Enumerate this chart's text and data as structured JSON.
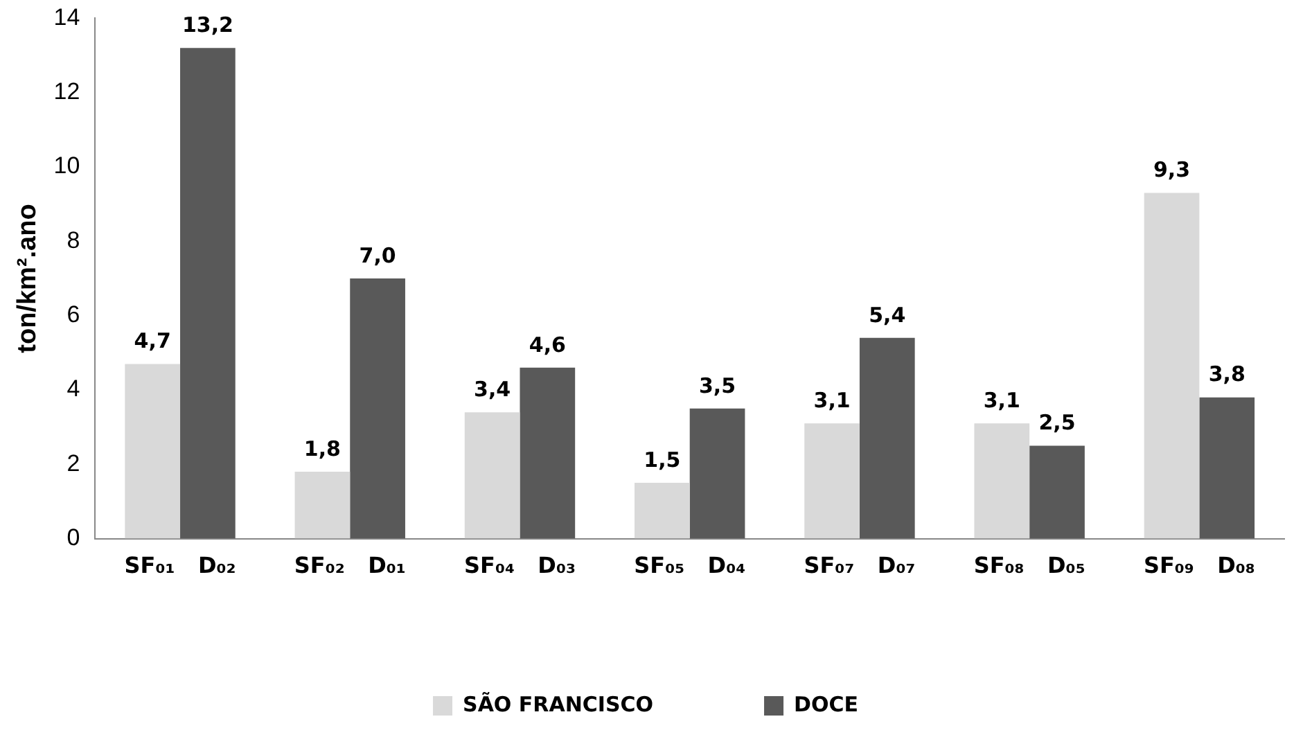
{
  "chart_data": {
    "type": "bar",
    "ylabel": "ton/km².ano",
    "categories": [
      "SF₀₁   D₀₂",
      "SF₀₂   D₀₁",
      "SF₀₄   D₀₃",
      "SF₀₅   D₀₄",
      "SF₀₇   D₀₇",
      "SF₀₈   D₀₅",
      "SF₀₉   D₀₈"
    ],
    "series": [
      {
        "name": "SÃO FRANCISCO",
        "color": "#d9d9d9",
        "values": [
          4.7,
          1.8,
          3.4,
          1.5,
          3.1,
          3.1,
          9.3
        ],
        "value_labels": [
          "4,7",
          "1,8",
          "3,4",
          "1,5",
          "3,1",
          "3,1",
          "9,3"
        ]
      },
      {
        "name": "DOCE",
        "color": "#595959",
        "values": [
          13.2,
          7.0,
          4.6,
          3.5,
          5.4,
          2.5,
          3.8
        ],
        "value_labels": [
          "13,2",
          "7,0",
          "4,6",
          "3,5",
          "5,4",
          "2,5",
          "3,8"
        ]
      }
    ],
    "ylim": [
      0,
      14
    ],
    "yticks": [
      0,
      2,
      4,
      6,
      8,
      10,
      12,
      14
    ],
    "grid": false,
    "legend": "bottom"
  }
}
